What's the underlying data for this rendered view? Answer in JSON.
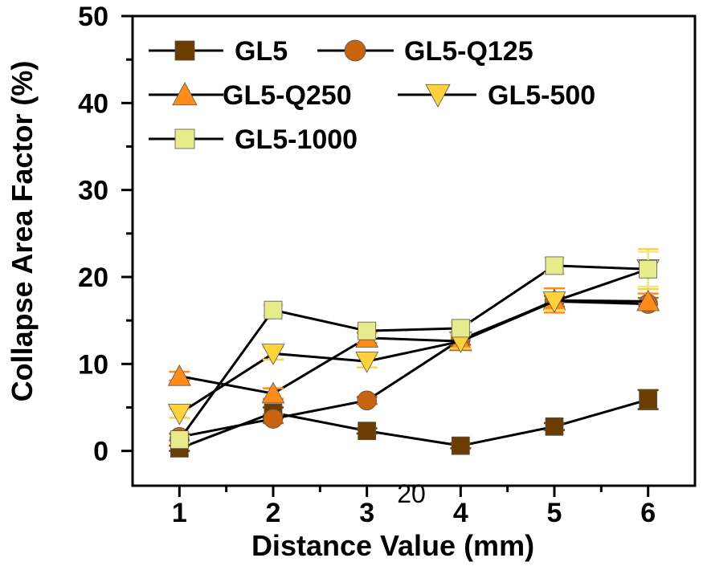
{
  "chart_data": {
    "type": "line",
    "xlabel": "Distance Value (mm)",
    "ylabel": "Collapse Area Factor (%)",
    "xlim": [
      0.5,
      6.5
    ],
    "ylim": [
      -4,
      50
    ],
    "x_ticks": [
      1,
      2,
      3,
      4,
      5,
      6
    ],
    "y_ticks": [
      0,
      10,
      20,
      30,
      40,
      50
    ],
    "grid": false,
    "legend_position": "top-left",
    "annotation": "20",
    "x": [
      1,
      2,
      3,
      4,
      5,
      6
    ],
    "series": [
      {
        "name": "GL5",
        "marker": "square",
        "color": "#6b3d00",
        "values": [
          0.3,
          4.4,
          2.3,
          0.6,
          2.8,
          5.9
        ],
        "errors": [
          0.3,
          0.6,
          0.3,
          0.3,
          0.4,
          1.1
        ]
      },
      {
        "name": "GL5-Q125",
        "marker": "circle",
        "color": "#c8640f",
        "values": [
          1.6,
          3.7,
          5.8,
          12.8,
          17.2,
          16.9
        ],
        "errors": [
          0.4,
          0.5,
          0.4,
          0.6,
          0.6,
          0.7
        ]
      },
      {
        "name": "GL5-Q250",
        "marker": "triangle-up",
        "color": "#ff8c1a",
        "values": [
          8.6,
          6.6,
          13.0,
          12.6,
          17.3,
          17.2
        ],
        "errors": [
          0.5,
          0.6,
          0.6,
          0.7,
          1.4,
          0.9
        ]
      },
      {
        "name": "GL5-500",
        "marker": "triangle-down",
        "color": "#ffd23c",
        "values": [
          4.3,
          11.2,
          10.3,
          12.6,
          17.2,
          20.9
        ],
        "errors": [
          0.5,
          0.7,
          0.7,
          0.8,
          1.0,
          2.3
        ]
      },
      {
        "name": "GL5-1000",
        "marker": "square",
        "color": "#e6eb8c",
        "values": [
          1.3,
          16.2,
          13.8,
          14.1,
          21.3,
          20.9
        ],
        "errors": [
          0.4,
          0.6,
          0.7,
          0.7,
          0.9,
          2.0
        ]
      }
    ]
  }
}
